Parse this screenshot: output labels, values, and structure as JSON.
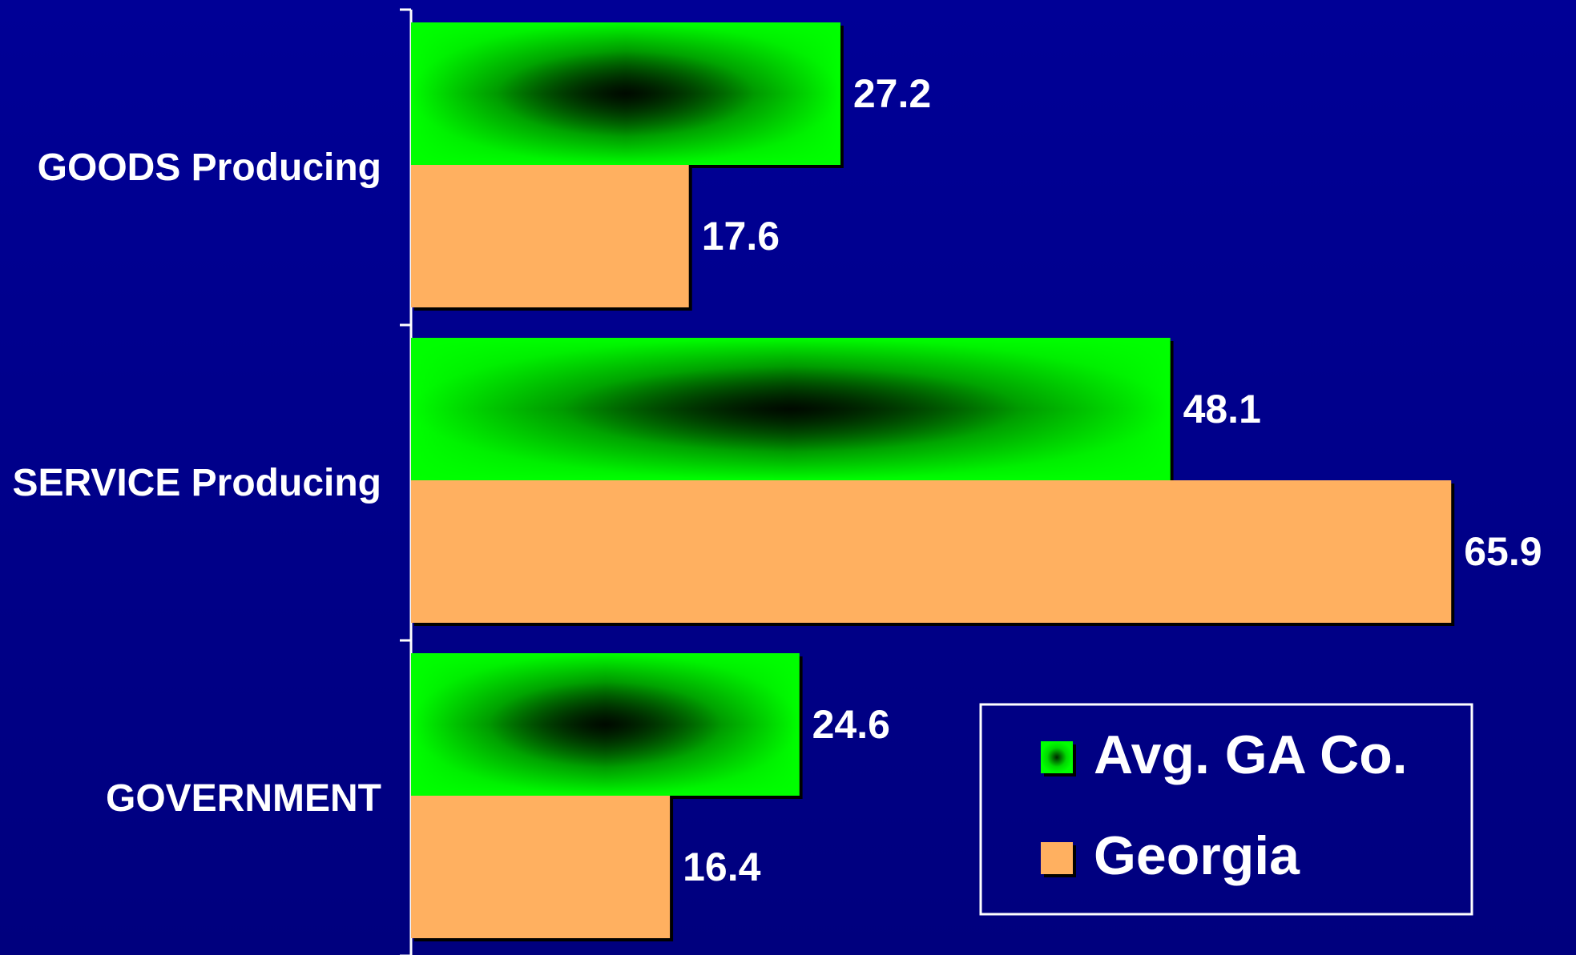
{
  "chart_data": {
    "type": "bar",
    "orientation": "horizontal",
    "title": "",
    "xlabel": "",
    "ylabel": "",
    "categories": [
      "GOODS Producing",
      "SERVICE Producing",
      "GOVERNMENT"
    ],
    "series": [
      {
        "name": "Avg. GA Co.",
        "values": [
          27.2,
          48.1,
          24.6
        ],
        "color": "#00ff00",
        "fill_style": "gradient with dark center"
      },
      {
        "name": "Georgia",
        "values": [
          17.6,
          65.9,
          16.4
        ],
        "color": "#ffb060"
      }
    ],
    "value_labels": [
      [
        "27.2",
        "48.1",
        "24.6"
      ],
      [
        "17.6",
        "65.9",
        "16.4"
      ]
    ],
    "xlim": [
      0,
      65.9
    ],
    "grid": false,
    "legend": {
      "position": "bottom-right",
      "entries": [
        "Avg. GA Co.",
        "Georgia"
      ]
    }
  },
  "colors": {
    "background": "#000090",
    "axis": "#ffffff",
    "text": "#ffffff",
    "legend_border": "#ffffff"
  }
}
